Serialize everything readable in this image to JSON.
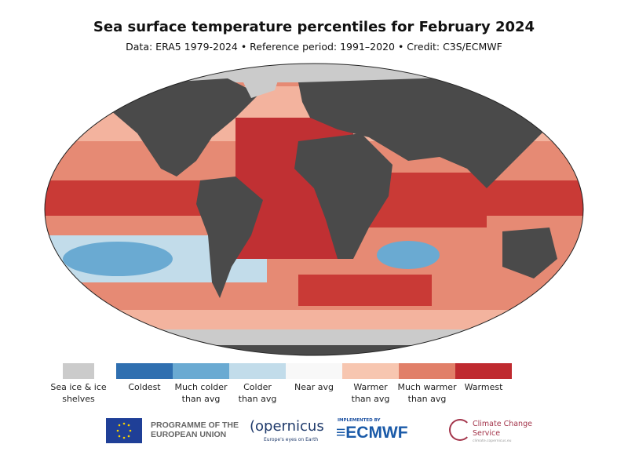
{
  "header": {
    "title": "Sea surface temperature percentiles for February 2024",
    "subtitle": "Data: ERA5 1979-2024 • Reference period: 1991–2020 • Credit: C3S/ECMWF"
  },
  "colors": {
    "land": "#4a4a4a",
    "ice": "#cbcbcb",
    "ocean_base": "#e68a74"
  },
  "legend": [
    {
      "label": "Sea ice & ice shelves",
      "color": "#cbcbcb"
    },
    {
      "label": "Coldest",
      "color": "#2f6fb0"
    },
    {
      "label": "Much colder than avg",
      "color": "#6aaad2"
    },
    {
      "label": "Colder than avg",
      "color": "#c2dcea"
    },
    {
      "label": "Near avg",
      "color": "#f8f8f8"
    },
    {
      "label": "Warmer than avg",
      "color": "#f7c6b0"
    },
    {
      "label": "Much warmer than avg",
      "color": "#e17f68"
    },
    {
      "label": "Warmest",
      "color": "#bf2a2f"
    }
  ],
  "logos": {
    "eu": "PROGRAMME OF THE EUROPEAN UNION",
    "copernicus": "opernicus",
    "copernicus_tagline": "Europe's eyes on Earth",
    "implemented": "IMPLEMENTED BY",
    "ecmwf": "ECMWF",
    "c3s": "Climate Change Service",
    "c3s_url": "climate.copernicus.eu"
  }
}
